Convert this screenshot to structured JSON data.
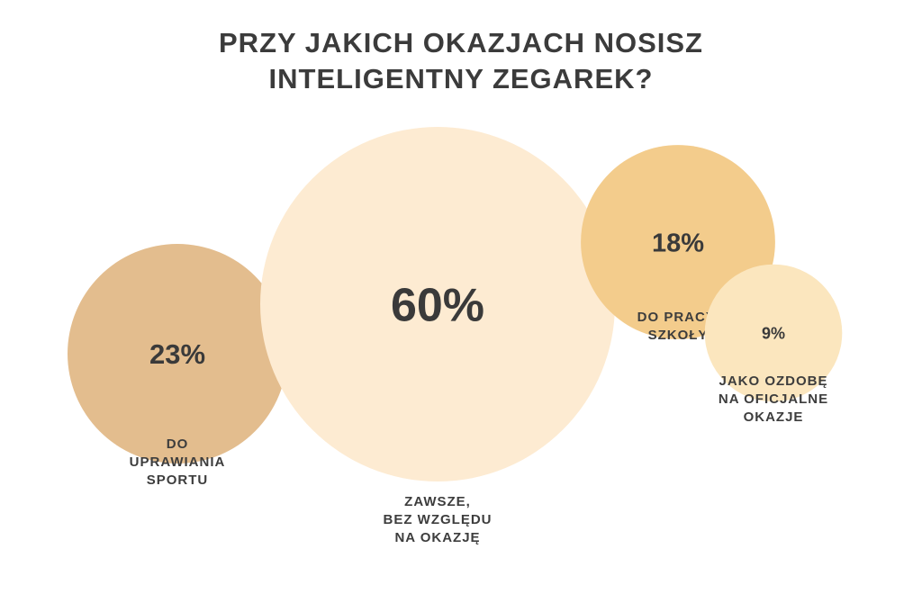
{
  "title_lines": [
    "PRZY JAKICH OKAZJACH NOSISZ",
    "INTELIGENTNY ZEGAREK?"
  ],
  "chart_data": {
    "type": "bubble",
    "unit": "%",
    "points": [
      {
        "value": 23,
        "value_label": "23%",
        "label_lines": [
          "DO",
          "UPRAWIANIA",
          "SPORTU"
        ],
        "color": "#e3bd8e"
      },
      {
        "value": 60,
        "value_label": "60%",
        "label_lines": [
          "ZAWSZE,",
          "BEZ WZGLĘDU",
          "NA OKAZJĘ"
        ],
        "color": "#fdebd2"
      },
      {
        "value": 18,
        "value_label": "18%",
        "label_lines": [
          "DO PRACY,",
          "SZKOŁY"
        ],
        "color": "#f3cc8c"
      },
      {
        "value": 9,
        "value_label": "9%",
        "label_lines": [
          "JAKO OZDOBĘ",
          "NA OFICJALNE",
          "OKAZJE"
        ],
        "color": "#fbe6be"
      }
    ]
  }
}
